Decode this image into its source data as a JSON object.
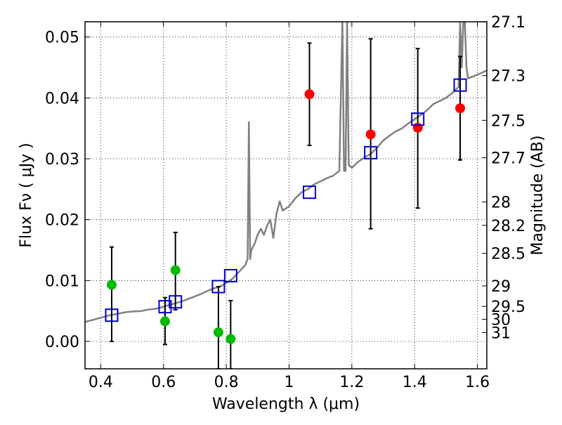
{
  "chart_data": {
    "type": "scatter",
    "title": "",
    "xlabel": "Wavelength  λ (μm)",
    "ylabel": "Flux  Fν  ( μJy )",
    "ylabel_right": "Magnitude (AB)",
    "xlim": [
      0.35,
      1.63
    ],
    "ylim": [
      -0.0045,
      0.0525
    ],
    "grid": true,
    "x_ticks": [
      {
        "value": 0.4,
        "label": "0.4"
      },
      {
        "value": 0.6,
        "label": "0.6"
      },
      {
        "value": 0.8,
        "label": "0.8"
      },
      {
        "value": 1.0,
        "label": "1"
      },
      {
        "value": 1.2,
        "label": "1.2"
      },
      {
        "value": 1.4,
        "label": "1.4"
      },
      {
        "value": 1.6,
        "label": "1.6"
      }
    ],
    "y_ticks": [
      {
        "value": 0.0,
        "label": "0.00"
      },
      {
        "value": 0.01,
        "label": "0.01"
      },
      {
        "value": 0.02,
        "label": "0.02"
      },
      {
        "value": 0.03,
        "label": "0.03"
      },
      {
        "value": 0.04,
        "label": "0.04"
      },
      {
        "value": 0.05,
        "label": "0.05"
      }
    ],
    "right_ticks": [
      {
        "mag": 27.1,
        "label": "27.1"
      },
      {
        "mag": 27.3,
        "label": "27.3"
      },
      {
        "mag": 27.5,
        "label": "27.5"
      },
      {
        "mag": 27.7,
        "label": "27.7"
      },
      {
        "mag": 28.0,
        "label": "28"
      },
      {
        "mag": 28.2,
        "label": "28.2"
      },
      {
        "mag": 28.5,
        "label": "28.5"
      },
      {
        "mag": 29.0,
        "label": "29"
      },
      {
        "mag": 29.5,
        "label": "29.5"
      },
      {
        "mag": 30.0,
        "label": "30"
      },
      {
        "mag": 31.0,
        "label": "31"
      }
    ],
    "series": [
      {
        "kind": "line",
        "color": "#808080",
        "x": [
          0.35,
          0.38,
          0.4,
          0.43,
          0.45,
          0.48,
          0.5,
          0.53,
          0.55,
          0.58,
          0.6,
          0.62,
          0.64,
          0.66,
          0.68,
          0.7,
          0.72,
          0.74,
          0.76,
          0.78,
          0.8,
          0.82,
          0.84,
          0.86,
          0.868,
          0.872,
          0.876,
          0.88,
          0.89,
          0.9,
          0.91,
          0.92,
          0.93,
          0.94,
          0.95,
          0.96,
          0.97,
          0.98,
          1.0,
          1.02,
          1.04,
          1.06,
          1.08,
          1.1,
          1.12,
          1.14,
          1.16,
          1.17,
          1.175,
          1.18,
          1.185,
          1.19,
          1.2,
          1.22,
          1.24,
          1.26,
          1.28,
          1.3,
          1.32,
          1.34,
          1.36,
          1.38,
          1.4,
          1.42,
          1.44,
          1.46,
          1.48,
          1.5,
          1.52,
          1.54,
          1.545,
          1.55,
          1.555,
          1.56,
          1.565,
          1.57,
          1.6,
          1.63
        ],
        "y": [
          0.0032,
          0.0036,
          0.0039,
          0.0043,
          0.0045,
          0.0048,
          0.0049,
          0.005,
          0.0052,
          0.0054,
          0.0057,
          0.006,
          0.0063,
          0.0066,
          0.007,
          0.0074,
          0.0078,
          0.0083,
          0.0087,
          0.009,
          0.0096,
          0.0103,
          0.0114,
          0.0125,
          0.0135,
          0.036,
          0.0135,
          0.015,
          0.016,
          0.0175,
          0.0185,
          0.0175,
          0.019,
          0.02,
          0.017,
          0.021,
          0.023,
          0.0215,
          0.0222,
          0.0235,
          0.0245,
          0.025,
          0.0258,
          0.0263,
          0.0268,
          0.0272,
          0.028,
          0.0525,
          0.028,
          0.028,
          0.0525,
          0.029,
          0.0285,
          0.0295,
          0.0302,
          0.0308,
          0.0318,
          0.033,
          0.0338,
          0.0345,
          0.035,
          0.0358,
          0.0365,
          0.0372,
          0.038,
          0.039,
          0.0395,
          0.04,
          0.0408,
          0.0418,
          0.0525,
          0.045,
          0.0525,
          0.0525,
          0.045,
          0.0432,
          0.0438,
          0.0445
        ]
      },
      {
        "kind": "points",
        "marker": "circle",
        "color": "#00bb00",
        "points": [
          {
            "x": 0.435,
            "y": 0.0093,
            "err_lo": 0.0,
            "err_hi": 0.0155
          },
          {
            "x": 0.605,
            "y": 0.0033,
            "err_lo": -0.0005,
            "err_hi": 0.0072
          },
          {
            "x": 0.638,
            "y": 0.0117,
            "err_lo": 0.0052,
            "err_hi": 0.0179
          },
          {
            "x": 0.775,
            "y": 0.0015,
            "err_lo": -0.0045,
            "err_hi": 0.009
          },
          {
            "x": 0.814,
            "y": 0.0004,
            "err_lo": -0.0045,
            "err_hi": 0.0067
          }
        ]
      },
      {
        "kind": "points",
        "marker": "circle",
        "color": "#ff0000",
        "points": [
          {
            "x": 1.065,
            "y": 0.0406,
            "err_lo": 0.0322,
            "err_hi": 0.049
          },
          {
            "x": 1.26,
            "y": 0.034,
            "err_lo": 0.0185,
            "err_hi": 0.0497
          },
          {
            "x": 1.41,
            "y": 0.0351,
            "err_lo": 0.0219,
            "err_hi": 0.0481
          },
          {
            "x": 1.545,
            "y": 0.0383,
            "err_lo": 0.0298,
            "err_hi": 0.0468
          }
        ]
      },
      {
        "kind": "points",
        "marker": "square-open",
        "color": "#0000cc",
        "points": [
          {
            "x": 0.435,
            "y": 0.0043
          },
          {
            "x": 0.605,
            "y": 0.0057
          },
          {
            "x": 0.638,
            "y": 0.0065
          },
          {
            "x": 0.775,
            "y": 0.009
          },
          {
            "x": 0.814,
            "y": 0.0108
          },
          {
            "x": 1.065,
            "y": 0.0245
          },
          {
            "x": 1.26,
            "y": 0.031
          },
          {
            "x": 1.41,
            "y": 0.0365
          },
          {
            "x": 1.545,
            "y": 0.0421
          }
        ]
      }
    ]
  }
}
